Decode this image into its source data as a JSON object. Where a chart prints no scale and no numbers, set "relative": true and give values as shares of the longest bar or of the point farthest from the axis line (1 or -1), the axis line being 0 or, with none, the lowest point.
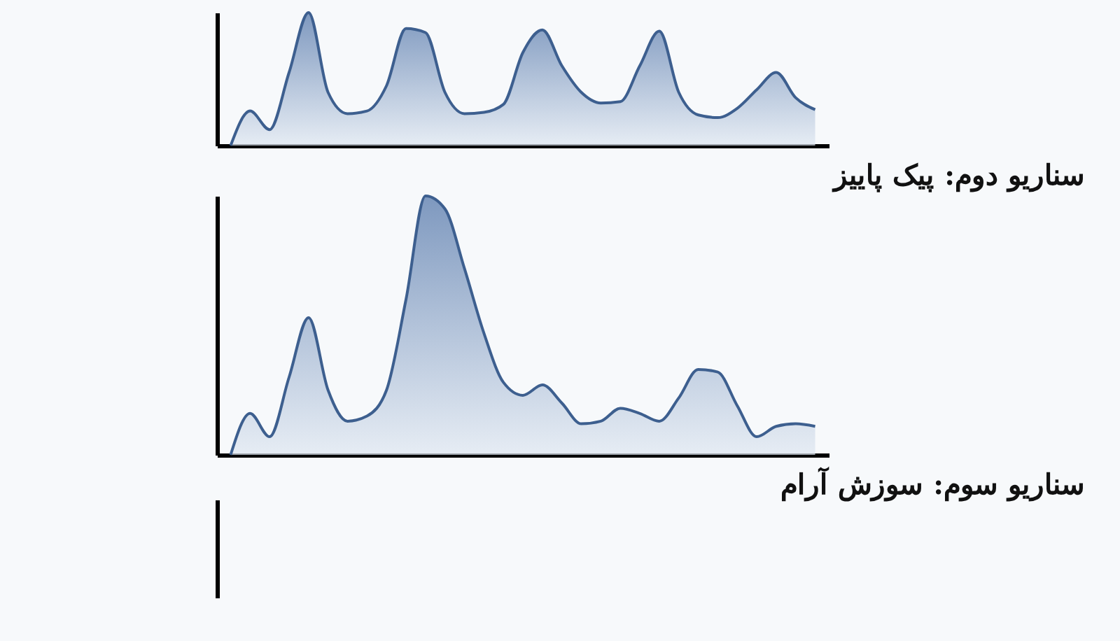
{
  "chart_data": [
    {
      "type": "area",
      "relative": true,
      "categories": [
        null,
        null,
        null,
        null,
        null,
        null,
        null,
        null,
        null,
        null,
        null,
        null,
        null,
        null,
        null,
        null,
        null,
        null,
        null,
        null,
        null,
        null,
        null,
        null,
        null,
        null,
        null,
        null,
        null,
        null,
        null
      ],
      "series": [
        {
          "color": "#4a6fa5",
          "values": [
            0,
            0.26,
            0.12,
            0.55,
            1.0,
            0.4,
            0.24,
            0.26,
            0.45,
            0.88,
            0.85,
            0.4,
            0.24,
            0.25,
            0.31,
            0.7,
            0.87,
            0.6,
            0.4,
            0.32,
            0.33,
            0.6,
            0.86,
            0.4,
            0.23,
            0.21,
            0.28,
            0.42,
            0.55,
            0.36,
            0.27
          ]
        }
      ]
    },
    {
      "type": "area",
      "relative": true,
      "title": "سناریو دوم: پیک پاییز",
      "categories": [
        null,
        null,
        null,
        null,
        null,
        null,
        null,
        null,
        null,
        null,
        null,
        null,
        null,
        null,
        null,
        null,
        null,
        null,
        null,
        null,
        null,
        null,
        null,
        null,
        null,
        null,
        null,
        null,
        null,
        null,
        null
      ],
      "series": [
        {
          "color": "#4a6fa5",
          "values": [
            0,
            0.16,
            0.07,
            0.3,
            0.53,
            0.25,
            0.13,
            0.15,
            0.25,
            0.6,
            1.0,
            0.95,
            0.72,
            0.47,
            0.28,
            0.23,
            0.27,
            0.2,
            0.12,
            0.13,
            0.18,
            0.16,
            0.13,
            0.22,
            0.33,
            0.32,
            0.19,
            0.07,
            0.11,
            0.12,
            0.11
          ]
        }
      ]
    },
    {
      "type": "other",
      "title": "سناریو سوم: سوزش آرام"
    }
  ]
}
